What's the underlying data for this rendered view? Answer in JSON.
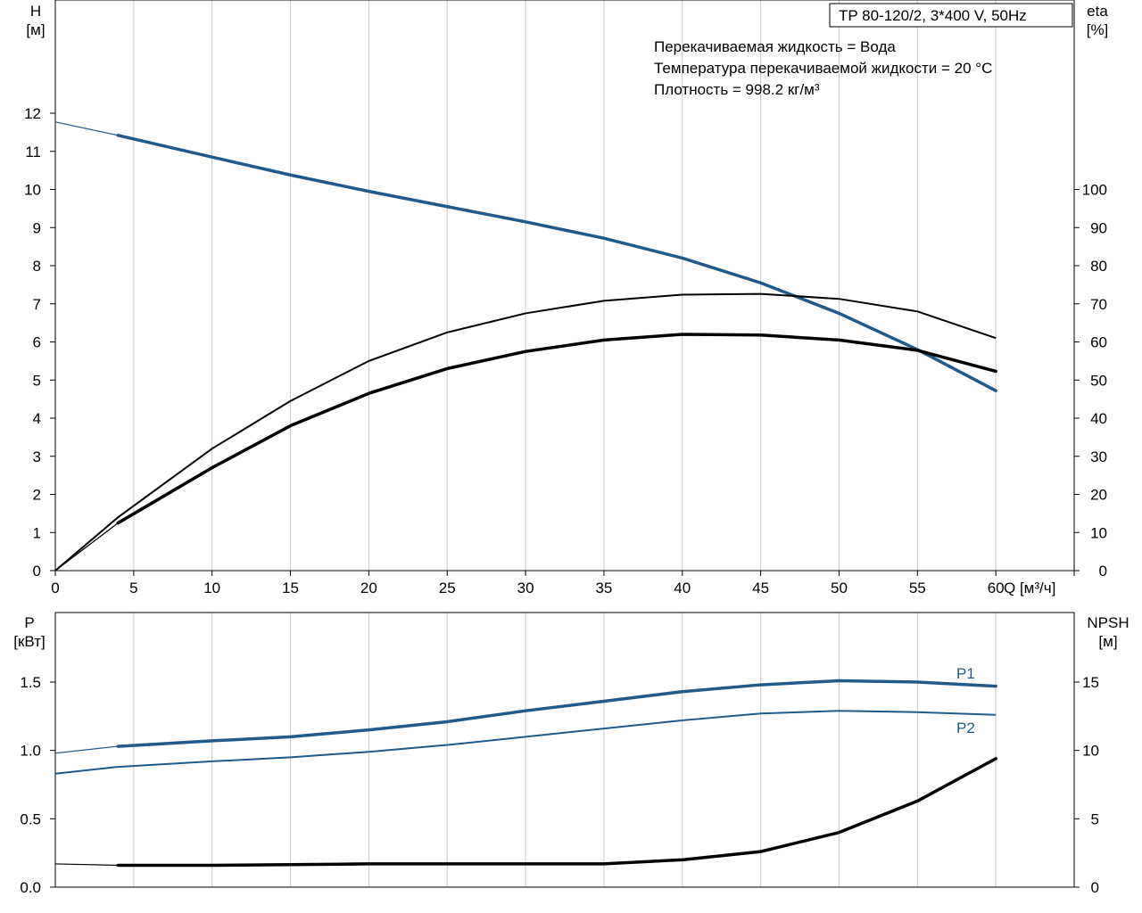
{
  "chart_data": [
    {
      "type": "line",
      "title": "TP 80-120/2, 3*400 V, 50Hz",
      "annotations": [
        "Перекачиваемая жидкость = Вода",
        "Температура перекачиваемой жидкости = 20 °C",
        "Плотность = 998.2 кг/м³"
      ],
      "xlabel": "Q [м³/ч]",
      "xlim": [
        0,
        65
      ],
      "xticks": [
        0,
        5,
        10,
        15,
        20,
        25,
        30,
        35,
        40,
        45,
        50,
        55,
        60
      ],
      "y_left": {
        "label_top": "H",
        "label_unit": "[м]",
        "ylim": [
          0,
          12
        ],
        "ticks": [
          0,
          1,
          2,
          3,
          4,
          5,
          6,
          7,
          8,
          9,
          10,
          11,
          12
        ]
      },
      "y_right": {
        "label_top": "eta",
        "label_unit": "[%]",
        "ylim": [
          0,
          120
        ],
        "ticks": [
          0,
          10,
          20,
          30,
          40,
          50,
          60,
          70,
          80,
          90,
          100
        ]
      },
      "grid": true,
      "series": [
        {
          "key": "H",
          "axis": "left",
          "color": "#1f5a8c",
          "x": [
            0,
            4,
            10,
            15,
            20,
            25,
            30,
            35,
            40,
            45,
            50,
            55,
            60
          ],
          "y": [
            11.77,
            11.42,
            10.85,
            10.38,
            9.95,
            9.55,
            9.15,
            8.72,
            8.2,
            7.55,
            6.75,
            5.8,
            4.72
          ]
        },
        {
          "key": "eta_motor",
          "axis": "right",
          "color": "#000000",
          "x": [
            0,
            4,
            10,
            15,
            20,
            25,
            30,
            35,
            40,
            45,
            50,
            55,
            60
          ],
          "y": [
            0,
            14,
            32,
            44.5,
            55,
            62.5,
            67.5,
            70.8,
            72.4,
            72.6,
            71.3,
            68,
            61
          ]
        },
        {
          "key": "eta_pump",
          "axis": "right",
          "color": "#000000",
          "x": [
            0,
            4,
            10,
            15,
            20,
            25,
            30,
            35,
            40,
            45,
            50,
            55,
            60
          ],
          "y": [
            0,
            12.5,
            27,
            38,
            46.5,
            53,
            57.5,
            60.5,
            62,
            61.8,
            60.5,
            57.8,
            52.3
          ]
        }
      ]
    },
    {
      "type": "line",
      "xlim": [
        0,
        65
      ],
      "xticks": [
        0,
        5,
        10,
        15,
        20,
        25,
        30,
        35,
        40,
        45,
        50,
        55,
        60
      ],
      "y_left": {
        "label_top": "P",
        "label_unit": "[кВт]",
        "ylim": [
          0,
          1.5
        ],
        "ticks": [
          "0.0",
          "0.5",
          "1.0",
          "1.5"
        ]
      },
      "y_right": {
        "label_top": "NPSH",
        "label_unit": "[м]",
        "ylim": [
          0,
          15
        ],
        "ticks": [
          0,
          5,
          10,
          15
        ]
      },
      "grid": true,
      "series": [
        {
          "name": "P1",
          "axis": "left",
          "color": "#1f5a8c",
          "x": [
            0,
            4,
            10,
            15,
            20,
            25,
            30,
            35,
            40,
            45,
            50,
            55,
            60
          ],
          "y": [
            0.98,
            1.03,
            1.07,
            1.1,
            1.15,
            1.21,
            1.29,
            1.36,
            1.43,
            1.48,
            1.51,
            1.5,
            1.47
          ]
        },
        {
          "name": "P2",
          "axis": "left",
          "color": "#1f5a8c",
          "x": [
            0,
            4,
            10,
            15,
            20,
            25,
            30,
            35,
            40,
            45,
            50,
            55,
            60
          ],
          "y": [
            0.83,
            0.88,
            0.92,
            0.95,
            0.99,
            1.04,
            1.1,
            1.16,
            1.22,
            1.27,
            1.29,
            1.28,
            1.26
          ]
        },
        {
          "key": "NPSH",
          "axis": "right",
          "color": "#000000",
          "x": [
            0,
            4,
            10,
            15,
            20,
            25,
            30,
            35,
            40,
            45,
            50,
            55,
            60
          ],
          "y": [
            1.7,
            1.6,
            1.6,
            1.65,
            1.7,
            1.7,
            1.7,
            1.7,
            2.0,
            2.6,
            4.0,
            6.3,
            9.4
          ]
        }
      ]
    }
  ]
}
